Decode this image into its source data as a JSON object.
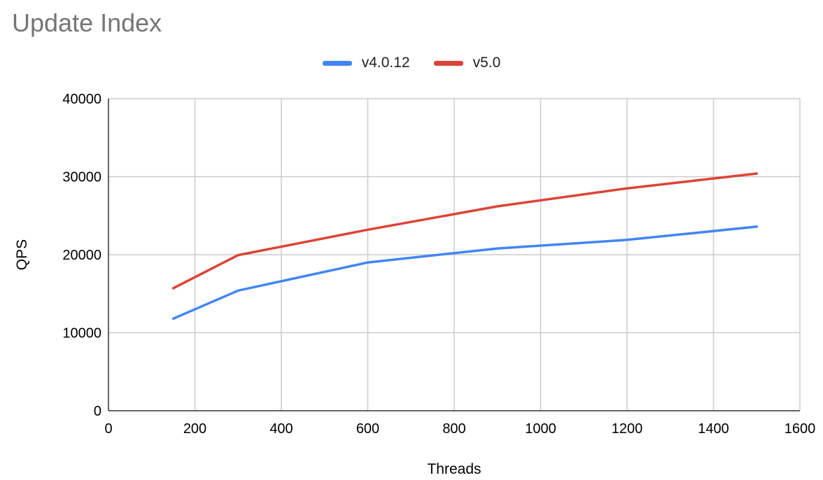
{
  "chart_data": {
    "type": "line",
    "title": "Update Index",
    "xlabel": "Threads",
    "ylabel": "QPS",
    "xlim": [
      0,
      1600
    ],
    "ylim": [
      0,
      40000
    ],
    "xticks": [
      0,
      200,
      400,
      600,
      800,
      1000,
      1200,
      1400,
      1600
    ],
    "yticks": [
      0,
      10000,
      20000,
      30000,
      40000
    ],
    "grid": true,
    "legend_position": "top-center",
    "x": [
      150,
      300,
      600,
      900,
      1200,
      1500
    ],
    "series": [
      {
        "name": "v4.0.12",
        "color": "#4285f4",
        "values": [
          11800,
          15400,
          19000,
          20800,
          21900,
          23600
        ]
      },
      {
        "name": "v5.0",
        "color": "#db4437",
        "values": [
          15700,
          19950,
          23200,
          26200,
          28500,
          30400
        ]
      }
    ]
  }
}
